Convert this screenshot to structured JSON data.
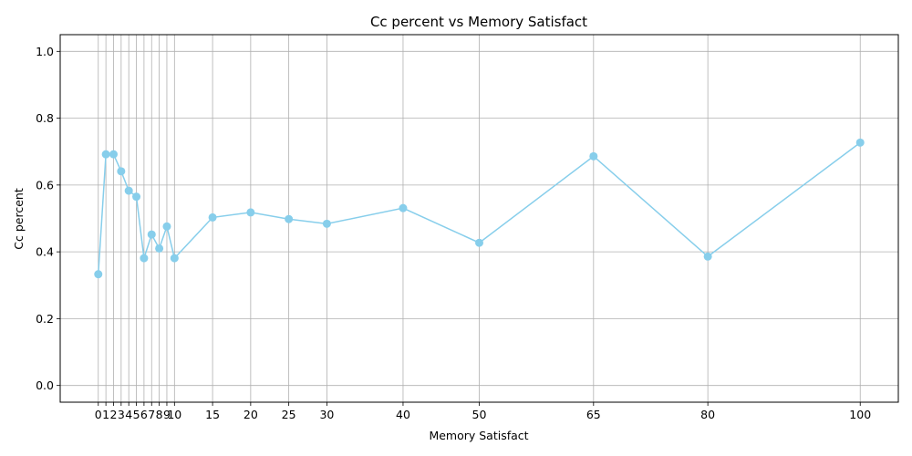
{
  "chart_data": {
    "type": "line",
    "title": "Cc percent vs Memory Satisfact",
    "xlabel": "Memory Satisfact",
    "ylabel": "Cc percent",
    "x": [
      0,
      1,
      2,
      3,
      4,
      5,
      6,
      7,
      8,
      9,
      10,
      15,
      20,
      25,
      30,
      40,
      50,
      65,
      80,
      100
    ],
    "series": [
      {
        "values": [
          0.333,
          0.692,
          0.692,
          0.641,
          0.583,
          0.565,
          0.381,
          0.452,
          0.41,
          0.476,
          0.381,
          0.503,
          0.518,
          0.498,
          0.484,
          0.531,
          0.427,
          0.686,
          0.386,
          0.727
        ],
        "color": "#87CEEB"
      }
    ],
    "xticks": [
      0,
      1,
      2,
      3,
      4,
      5,
      6,
      7,
      8,
      9,
      10,
      15,
      20,
      25,
      30,
      40,
      50,
      65,
      80,
      100
    ],
    "xtick_labels": [
      "0",
      "1",
      "2",
      "3",
      "4",
      "5",
      "6",
      "7",
      "8",
      "9",
      "10",
      "15",
      "20",
      "25",
      "30",
      "40",
      "50",
      "65",
      "80",
      "100"
    ],
    "yticks": [
      0.0,
      0.2,
      0.4,
      0.6,
      0.8,
      1.0
    ],
    "ytick_labels": [
      "0.0",
      "0.2",
      "0.4",
      "0.6",
      "0.8",
      "1.0"
    ],
    "xlim": [
      -5,
      105
    ],
    "ylim": [
      -0.05,
      1.05
    ],
    "grid": true,
    "grid_color": "#b0b0b0"
  }
}
